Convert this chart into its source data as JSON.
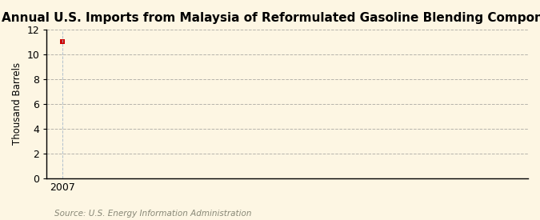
{
  "title": "Annual U.S. Imports from Malaysia of Reformulated Gasoline Blending Components",
  "ylabel": "Thousand Barrels",
  "source": "Source: U.S. Energy Information Administration",
  "x_data": [
    2007
  ],
  "y_data": [
    11
  ],
  "xlim": [
    2006.5,
    2022
  ],
  "ylim": [
    0,
    12
  ],
  "yticks": [
    0,
    2,
    4,
    6,
    8,
    10,
    12
  ],
  "xticks": [
    2007
  ],
  "marker_color": "#cc0000",
  "marker": "s",
  "marker_size": 4,
  "bg_color": "#fdf6e3",
  "plot_bg_color": "#fdf6e3",
  "grid_color": "#888888",
  "vgrid_color": "#aabbcc",
  "title_fontsize": 11,
  "label_fontsize": 8.5,
  "tick_fontsize": 9,
  "source_fontsize": 7.5,
  "source_color": "#888877"
}
